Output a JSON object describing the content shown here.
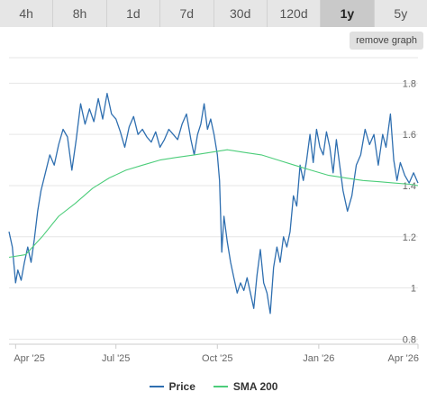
{
  "range_tabs": [
    {
      "label": "4h",
      "active": false
    },
    {
      "label": "8h",
      "active": false
    },
    {
      "label": "1d",
      "active": false
    },
    {
      "label": "7d",
      "active": false
    },
    {
      "label": "30d",
      "active": false
    },
    {
      "label": "120d",
      "active": false
    },
    {
      "label": "1y",
      "active": true
    },
    {
      "label": "5y",
      "active": false
    }
  ],
  "remove_graph_label": "remove graph",
  "colors": {
    "price": "#2f6fb0",
    "sma": "#4ccd7a",
    "grid": "#e6e6e6",
    "axis": "#cccccc"
  },
  "chart_data": {
    "type": "line",
    "title": "",
    "xlabel": "",
    "ylabel": "",
    "ylim": [
      0.78,
      1.9
    ],
    "xlim": [
      "2025-03-26",
      "2026-04-01"
    ],
    "y_ticks": [
      "0.8",
      "1",
      "1.2",
      "1.4",
      "1.6",
      "1.8"
    ],
    "x_ticks": [
      {
        "label": "Apr '25",
        "date": "2025-04-01"
      },
      {
        "label": "Jul '25",
        "date": "2025-07-01"
      },
      {
        "label": "Oct '25",
        "date": "2025-10-01"
      },
      {
        "label": "Jan '26",
        "date": "2026-01-01"
      },
      {
        "label": "Apr '26",
        "date": "2026-04-01"
      }
    ],
    "grid": true,
    "legend": "bottom-center",
    "series": [
      {
        "name": "Price",
        "points": [
          [
            "2025-03-26",
            1.22
          ],
          [
            "2025-03-29",
            1.16
          ],
          [
            "2025-04-01",
            1.02
          ],
          [
            "2025-04-03",
            1.07
          ],
          [
            "2025-04-06",
            1.03
          ],
          [
            "2025-04-09",
            1.1
          ],
          [
            "2025-04-12",
            1.16
          ],
          [
            "2025-04-15",
            1.1
          ],
          [
            "2025-04-18",
            1.19
          ],
          [
            "2025-04-21",
            1.3
          ],
          [
            "2025-04-24",
            1.38
          ],
          [
            "2025-04-28",
            1.45
          ],
          [
            "2025-05-02",
            1.52
          ],
          [
            "2025-05-06",
            1.48
          ],
          [
            "2025-05-10",
            1.56
          ],
          [
            "2025-05-14",
            1.62
          ],
          [
            "2025-05-18",
            1.59
          ],
          [
            "2025-05-22",
            1.46
          ],
          [
            "2025-05-26",
            1.58
          ],
          [
            "2025-05-30",
            1.72
          ],
          [
            "2025-06-03",
            1.64
          ],
          [
            "2025-06-07",
            1.7
          ],
          [
            "2025-06-11",
            1.65
          ],
          [
            "2025-06-15",
            1.74
          ],
          [
            "2025-06-19",
            1.66
          ],
          [
            "2025-06-23",
            1.76
          ],
          [
            "2025-06-27",
            1.68
          ],
          [
            "2025-07-01",
            1.66
          ],
          [
            "2025-07-05",
            1.61
          ],
          [
            "2025-07-09",
            1.55
          ],
          [
            "2025-07-13",
            1.63
          ],
          [
            "2025-07-17",
            1.67
          ],
          [
            "2025-07-21",
            1.6
          ],
          [
            "2025-07-25",
            1.62
          ],
          [
            "2025-07-29",
            1.59
          ],
          [
            "2025-08-02",
            1.57
          ],
          [
            "2025-08-06",
            1.61
          ],
          [
            "2025-08-10",
            1.55
          ],
          [
            "2025-08-14",
            1.58
          ],
          [
            "2025-08-18",
            1.62
          ],
          [
            "2025-08-22",
            1.6
          ],
          [
            "2025-08-26",
            1.58
          ],
          [
            "2025-08-30",
            1.64
          ],
          [
            "2025-09-03",
            1.68
          ],
          [
            "2025-09-07",
            1.58
          ],
          [
            "2025-09-10",
            1.52
          ],
          [
            "2025-09-13",
            1.6
          ],
          [
            "2025-09-16",
            1.64
          ],
          [
            "2025-09-19",
            1.72
          ],
          [
            "2025-09-22",
            1.62
          ],
          [
            "2025-09-25",
            1.66
          ],
          [
            "2025-09-28",
            1.6
          ],
          [
            "2025-10-01",
            1.52
          ],
          [
            "2025-10-03",
            1.42
          ],
          [
            "2025-10-05",
            1.14
          ],
          [
            "2025-10-07",
            1.28
          ],
          [
            "2025-10-10",
            1.18
          ],
          [
            "2025-10-13",
            1.1
          ],
          [
            "2025-10-16",
            1.04
          ],
          [
            "2025-10-19",
            0.98
          ],
          [
            "2025-10-22",
            1.02
          ],
          [
            "2025-10-25",
            0.99
          ],
          [
            "2025-10-28",
            1.04
          ],
          [
            "2025-10-31",
            0.98
          ],
          [
            "2025-11-03",
            0.92
          ],
          [
            "2025-11-06",
            1.05
          ],
          [
            "2025-11-09",
            1.15
          ],
          [
            "2025-11-12",
            1.02
          ],
          [
            "2025-11-15",
            0.98
          ],
          [
            "2025-11-18",
            0.9
          ],
          [
            "2025-11-21",
            1.08
          ],
          [
            "2025-11-24",
            1.16
          ],
          [
            "2025-11-27",
            1.1
          ],
          [
            "2025-11-30",
            1.2
          ],
          [
            "2025-12-03",
            1.16
          ],
          [
            "2025-12-06",
            1.22
          ],
          [
            "2025-12-09",
            1.36
          ],
          [
            "2025-12-12",
            1.32
          ],
          [
            "2025-12-15",
            1.48
          ],
          [
            "2025-12-18",
            1.42
          ],
          [
            "2025-12-21",
            1.5
          ],
          [
            "2025-12-24",
            1.6
          ],
          [
            "2025-12-27",
            1.49
          ],
          [
            "2025-12-30",
            1.62
          ],
          [
            "2026-01-02",
            1.55
          ],
          [
            "2026-01-05",
            1.52
          ],
          [
            "2026-01-08",
            1.61
          ],
          [
            "2026-01-11",
            1.55
          ],
          [
            "2026-01-14",
            1.45
          ],
          [
            "2026-01-17",
            1.58
          ],
          [
            "2026-01-20",
            1.48
          ],
          [
            "2026-01-23",
            1.38
          ],
          [
            "2026-01-27",
            1.3
          ],
          [
            "2026-01-31",
            1.36
          ],
          [
            "2026-02-04",
            1.48
          ],
          [
            "2026-02-08",
            1.52
          ],
          [
            "2026-02-12",
            1.62
          ],
          [
            "2026-02-16",
            1.56
          ],
          [
            "2026-02-20",
            1.6
          ],
          [
            "2026-02-24",
            1.48
          ],
          [
            "2026-02-28",
            1.6
          ],
          [
            "2026-03-03",
            1.55
          ],
          [
            "2026-03-07",
            1.68
          ],
          [
            "2026-03-10",
            1.5
          ],
          [
            "2026-03-13",
            1.42
          ],
          [
            "2026-03-16",
            1.49
          ],
          [
            "2026-03-20",
            1.44
          ],
          [
            "2026-03-24",
            1.41
          ],
          [
            "2026-03-28",
            1.45
          ],
          [
            "2026-04-01",
            1.41
          ]
        ]
      },
      {
        "name": "SMA 200",
        "points": [
          [
            "2025-03-26",
            1.12
          ],
          [
            "2025-04-10",
            1.13
          ],
          [
            "2025-04-25",
            1.2
          ],
          [
            "2025-05-10",
            1.28
          ],
          [
            "2025-05-25",
            1.33
          ],
          [
            "2025-06-10",
            1.39
          ],
          [
            "2025-06-25",
            1.43
          ],
          [
            "2025-07-10",
            1.46
          ],
          [
            "2025-07-25",
            1.48
          ],
          [
            "2025-08-10",
            1.5
          ],
          [
            "2025-08-25",
            1.51
          ],
          [
            "2025-09-10",
            1.52
          ],
          [
            "2025-09-25",
            1.53
          ],
          [
            "2025-10-10",
            1.54
          ],
          [
            "2025-10-25",
            1.53
          ],
          [
            "2025-11-10",
            1.52
          ],
          [
            "2025-11-25",
            1.5
          ],
          [
            "2025-12-10",
            1.48
          ],
          [
            "2025-12-25",
            1.46
          ],
          [
            "2026-01-10",
            1.44
          ],
          [
            "2026-01-25",
            1.43
          ],
          [
            "2026-02-10",
            1.42
          ],
          [
            "2026-02-25",
            1.415
          ],
          [
            "2026-03-10",
            1.41
          ],
          [
            "2026-03-25",
            1.405
          ],
          [
            "2026-04-01",
            1.4
          ]
        ]
      }
    ]
  }
}
